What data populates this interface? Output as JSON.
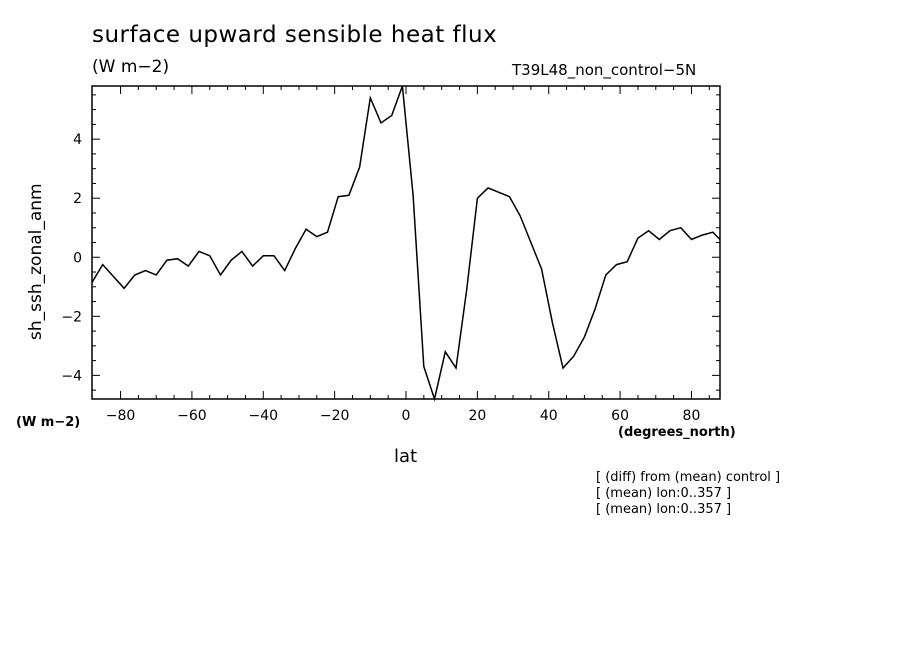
{
  "chart_data": {
    "type": "line",
    "title": "surface upward sensible heat flux",
    "units": "(W m−2)",
    "run_label": "T39L48_non_control−5N",
    "xlabel": "lat",
    "ylabel": "sh_ssh_zonal_anm",
    "x_units": "(degrees_north)",
    "y_units": "(W m−2)",
    "xlim": [
      -88,
      88
    ],
    "ylim": [
      -4.8,
      5.8
    ],
    "grid": false,
    "xticks": [
      -80,
      -60,
      -40,
      -20,
      0,
      20,
      40,
      60,
      80
    ],
    "xtick_labels": [
      "−80",
      "−60",
      "−40",
      "−20",
      "0",
      "20",
      "40",
      "60",
      "80"
    ],
    "yticks": [
      -4,
      -2,
      0,
      2,
      4
    ],
    "ytick_labels": [
      "−4",
      "−2",
      "0",
      "2",
      "4"
    ],
    "series": [
      {
        "x": [
          -88,
          -85,
          -82,
          -79,
          -76,
          -73,
          -70,
          -67,
          -64,
          -61,
          -58,
          -55,
          -52,
          -49,
          -46,
          -43,
          -40,
          -37,
          -34,
          -31,
          -28,
          -25,
          -22,
          -19,
          -16,
          -13,
          -10,
          -7,
          -4,
          -1,
          2,
          5,
          8,
          11,
          14,
          17,
          20,
          23,
          26,
          29,
          32,
          35,
          38,
          41,
          44,
          47,
          50,
          53,
          56,
          59,
          62,
          65,
          68,
          71,
          74,
          77,
          80,
          83,
          86,
          88
        ],
        "y": [
          -0.85,
          -0.25,
          -0.65,
          -1.05,
          -0.6,
          -0.45,
          -0.6,
          -0.1,
          -0.05,
          -0.3,
          0.2,
          0.05,
          -0.6,
          -0.1,
          0.2,
          -0.3,
          0.05,
          0.05,
          -0.45,
          0.3,
          0.95,
          0.7,
          0.85,
          2.05,
          2.1,
          3.05,
          5.4,
          4.55,
          4.8,
          5.8,
          2.1,
          -3.7,
          -4.8,
          -3.2,
          -3.75,
          -1.1,
          2.0,
          2.35,
          2.2,
          2.05,
          1.4,
          0.5,
          -0.4,
          -2.2,
          -3.75,
          -3.35,
          -2.7,
          -1.75,
          -0.6,
          -0.25,
          -0.15,
          0.65,
          0.9,
          0.6,
          0.9,
          1.0,
          0.6,
          0.75,
          0.85,
          0.6
        ]
      }
    ],
    "notes": [
      "[ (diff) from (mean) control ]",
      "[ (mean) lon:0..357 ]",
      "[ (mean) lon:0..357 ]"
    ]
  }
}
